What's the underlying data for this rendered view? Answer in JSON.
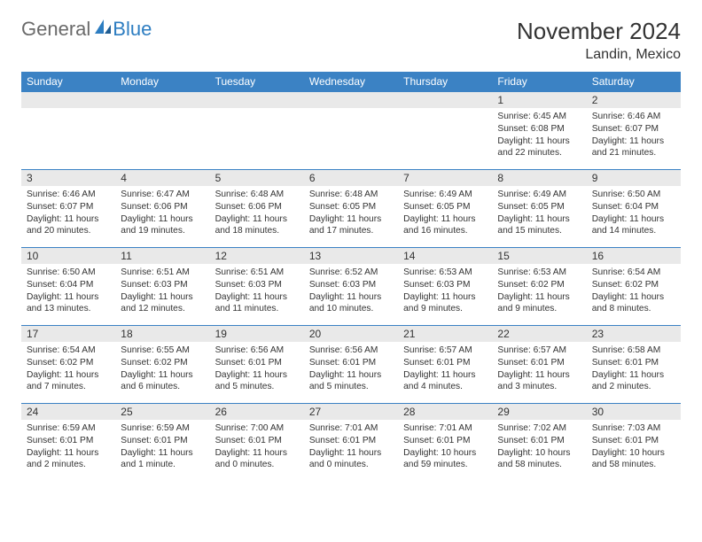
{
  "logo": {
    "word1": "General",
    "word2": "Blue"
  },
  "title": "November 2024",
  "location": "Landin, Mexico",
  "colors": {
    "header_bg": "#3b82c4",
    "header_text": "#ffffff",
    "daynum_bg": "#e9e9e9",
    "border": "#3b82c4",
    "logo_gray": "#6a6a6a",
    "logo_blue": "#2d7dc1"
  },
  "weekdays": [
    "Sunday",
    "Monday",
    "Tuesday",
    "Wednesday",
    "Thursday",
    "Friday",
    "Saturday"
  ],
  "weeks": [
    [
      {
        "n": "",
        "sr": "",
        "ss": "",
        "dl": ""
      },
      {
        "n": "",
        "sr": "",
        "ss": "",
        "dl": ""
      },
      {
        "n": "",
        "sr": "",
        "ss": "",
        "dl": ""
      },
      {
        "n": "",
        "sr": "",
        "ss": "",
        "dl": ""
      },
      {
        "n": "",
        "sr": "",
        "ss": "",
        "dl": ""
      },
      {
        "n": "1",
        "sr": "Sunrise: 6:45 AM",
        "ss": "Sunset: 6:08 PM",
        "dl": "Daylight: 11 hours and 22 minutes."
      },
      {
        "n": "2",
        "sr": "Sunrise: 6:46 AM",
        "ss": "Sunset: 6:07 PM",
        "dl": "Daylight: 11 hours and 21 minutes."
      }
    ],
    [
      {
        "n": "3",
        "sr": "Sunrise: 6:46 AM",
        "ss": "Sunset: 6:07 PM",
        "dl": "Daylight: 11 hours and 20 minutes."
      },
      {
        "n": "4",
        "sr": "Sunrise: 6:47 AM",
        "ss": "Sunset: 6:06 PM",
        "dl": "Daylight: 11 hours and 19 minutes."
      },
      {
        "n": "5",
        "sr": "Sunrise: 6:48 AM",
        "ss": "Sunset: 6:06 PM",
        "dl": "Daylight: 11 hours and 18 minutes."
      },
      {
        "n": "6",
        "sr": "Sunrise: 6:48 AM",
        "ss": "Sunset: 6:05 PM",
        "dl": "Daylight: 11 hours and 17 minutes."
      },
      {
        "n": "7",
        "sr": "Sunrise: 6:49 AM",
        "ss": "Sunset: 6:05 PM",
        "dl": "Daylight: 11 hours and 16 minutes."
      },
      {
        "n": "8",
        "sr": "Sunrise: 6:49 AM",
        "ss": "Sunset: 6:05 PM",
        "dl": "Daylight: 11 hours and 15 minutes."
      },
      {
        "n": "9",
        "sr": "Sunrise: 6:50 AM",
        "ss": "Sunset: 6:04 PM",
        "dl": "Daylight: 11 hours and 14 minutes."
      }
    ],
    [
      {
        "n": "10",
        "sr": "Sunrise: 6:50 AM",
        "ss": "Sunset: 6:04 PM",
        "dl": "Daylight: 11 hours and 13 minutes."
      },
      {
        "n": "11",
        "sr": "Sunrise: 6:51 AM",
        "ss": "Sunset: 6:03 PM",
        "dl": "Daylight: 11 hours and 12 minutes."
      },
      {
        "n": "12",
        "sr": "Sunrise: 6:51 AM",
        "ss": "Sunset: 6:03 PM",
        "dl": "Daylight: 11 hours and 11 minutes."
      },
      {
        "n": "13",
        "sr": "Sunrise: 6:52 AM",
        "ss": "Sunset: 6:03 PM",
        "dl": "Daylight: 11 hours and 10 minutes."
      },
      {
        "n": "14",
        "sr": "Sunrise: 6:53 AM",
        "ss": "Sunset: 6:03 PM",
        "dl": "Daylight: 11 hours and 9 minutes."
      },
      {
        "n": "15",
        "sr": "Sunrise: 6:53 AM",
        "ss": "Sunset: 6:02 PM",
        "dl": "Daylight: 11 hours and 9 minutes."
      },
      {
        "n": "16",
        "sr": "Sunrise: 6:54 AM",
        "ss": "Sunset: 6:02 PM",
        "dl": "Daylight: 11 hours and 8 minutes."
      }
    ],
    [
      {
        "n": "17",
        "sr": "Sunrise: 6:54 AM",
        "ss": "Sunset: 6:02 PM",
        "dl": "Daylight: 11 hours and 7 minutes."
      },
      {
        "n": "18",
        "sr": "Sunrise: 6:55 AM",
        "ss": "Sunset: 6:02 PM",
        "dl": "Daylight: 11 hours and 6 minutes."
      },
      {
        "n": "19",
        "sr": "Sunrise: 6:56 AM",
        "ss": "Sunset: 6:01 PM",
        "dl": "Daylight: 11 hours and 5 minutes."
      },
      {
        "n": "20",
        "sr": "Sunrise: 6:56 AM",
        "ss": "Sunset: 6:01 PM",
        "dl": "Daylight: 11 hours and 5 minutes."
      },
      {
        "n": "21",
        "sr": "Sunrise: 6:57 AM",
        "ss": "Sunset: 6:01 PM",
        "dl": "Daylight: 11 hours and 4 minutes."
      },
      {
        "n": "22",
        "sr": "Sunrise: 6:57 AM",
        "ss": "Sunset: 6:01 PM",
        "dl": "Daylight: 11 hours and 3 minutes."
      },
      {
        "n": "23",
        "sr": "Sunrise: 6:58 AM",
        "ss": "Sunset: 6:01 PM",
        "dl": "Daylight: 11 hours and 2 minutes."
      }
    ],
    [
      {
        "n": "24",
        "sr": "Sunrise: 6:59 AM",
        "ss": "Sunset: 6:01 PM",
        "dl": "Daylight: 11 hours and 2 minutes."
      },
      {
        "n": "25",
        "sr": "Sunrise: 6:59 AM",
        "ss": "Sunset: 6:01 PM",
        "dl": "Daylight: 11 hours and 1 minute."
      },
      {
        "n": "26",
        "sr": "Sunrise: 7:00 AM",
        "ss": "Sunset: 6:01 PM",
        "dl": "Daylight: 11 hours and 0 minutes."
      },
      {
        "n": "27",
        "sr": "Sunrise: 7:01 AM",
        "ss": "Sunset: 6:01 PM",
        "dl": "Daylight: 11 hours and 0 minutes."
      },
      {
        "n": "28",
        "sr": "Sunrise: 7:01 AM",
        "ss": "Sunset: 6:01 PM",
        "dl": "Daylight: 10 hours and 59 minutes."
      },
      {
        "n": "29",
        "sr": "Sunrise: 7:02 AM",
        "ss": "Sunset: 6:01 PM",
        "dl": "Daylight: 10 hours and 58 minutes."
      },
      {
        "n": "30",
        "sr": "Sunrise: 7:03 AM",
        "ss": "Sunset: 6:01 PM",
        "dl": "Daylight: 10 hours and 58 minutes."
      }
    ]
  ]
}
